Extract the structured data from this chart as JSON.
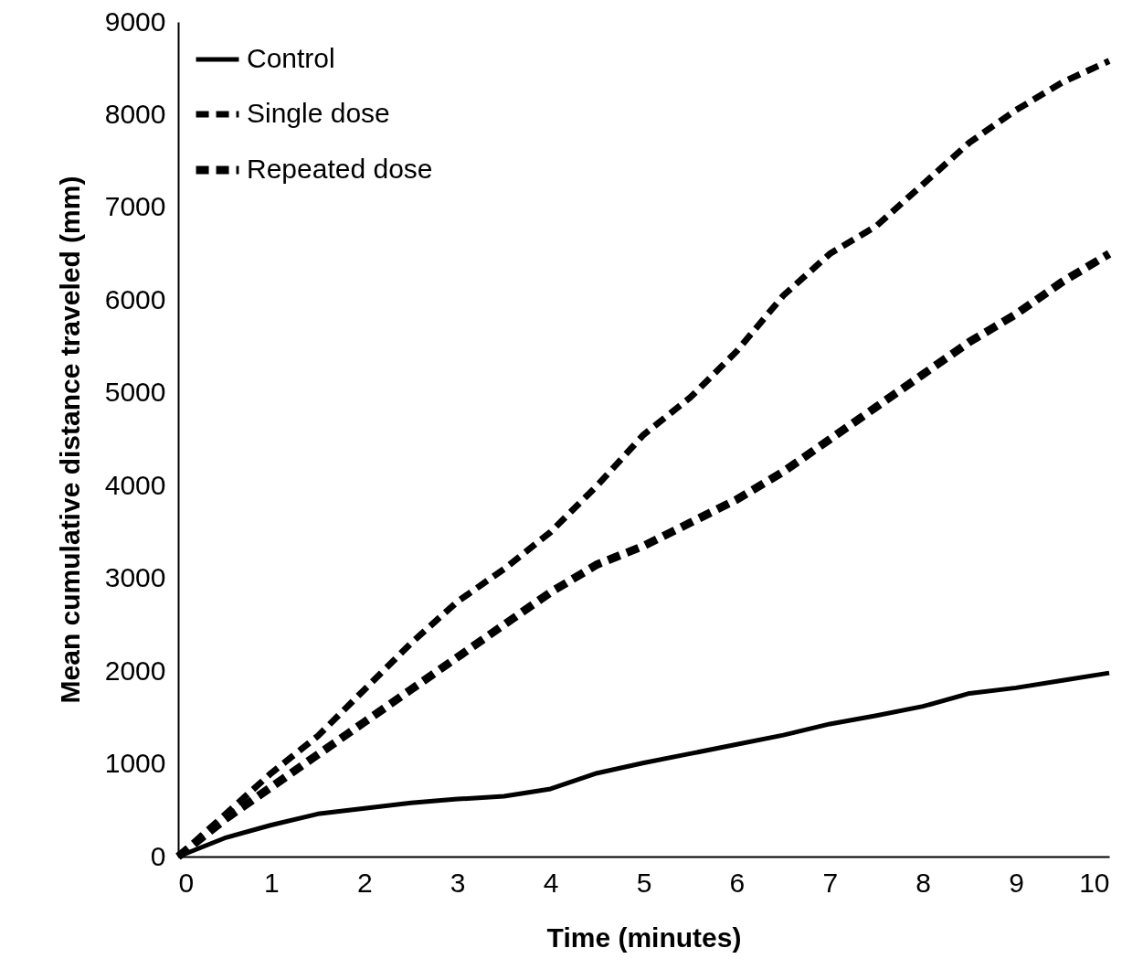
{
  "chart_data": {
    "type": "line",
    "xlabel": "Time (minutes)",
    "ylabel": "Mean cumulative distance traveled (mm)",
    "xlim": [
      0,
      10
    ],
    "xticks": [
      0,
      1,
      2,
      3,
      4,
      5,
      6,
      7,
      8,
      9,
      10
    ],
    "ylim": [
      0,
      9000
    ],
    "yticks": [
      0,
      1000,
      2000,
      3000,
      4000,
      5000,
      6000,
      7000,
      8000,
      9000
    ],
    "grid": false,
    "legend": "top left",
    "marker": "none",
    "x": [
      0,
      0.5,
      1,
      1.5,
      2,
      2.5,
      3,
      3.5,
      4,
      4.5,
      5,
      5.5,
      6,
      6.5,
      7,
      7.5,
      8,
      8.5,
      9,
      9.5,
      10
    ],
    "series": [
      {
        "name": "Control",
        "color": "#000000",
        "line_style": "solid",
        "values": [
          0,
          200,
          340,
          460,
          520,
          580,
          620,
          650,
          730,
          900,
          1010,
          1110,
          1210,
          1310,
          1430,
          1520,
          1620,
          1760,
          1820,
          1900,
          1980
        ]
      },
      {
        "name": "Single dose",
        "color": "#000000",
        "line_style": "dashed",
        "values": [
          0,
          450,
          900,
          1300,
          1800,
          2300,
          2750,
          3100,
          3500,
          4000,
          4550,
          4950,
          5450,
          6050,
          6500,
          6800,
          7250,
          7700,
          8050,
          8350,
          8580
        ]
      },
      {
        "name": "Repeated dose",
        "color": "#000000",
        "line_style": "dashed",
        "values": [
          0,
          400,
          750,
          1100,
          1450,
          1800,
          2150,
          2500,
          2850,
          3150,
          3350,
          3600,
          3850,
          4150,
          4500,
          4850,
          5200,
          5550,
          5850,
          6200,
          6500
        ]
      }
    ]
  }
}
